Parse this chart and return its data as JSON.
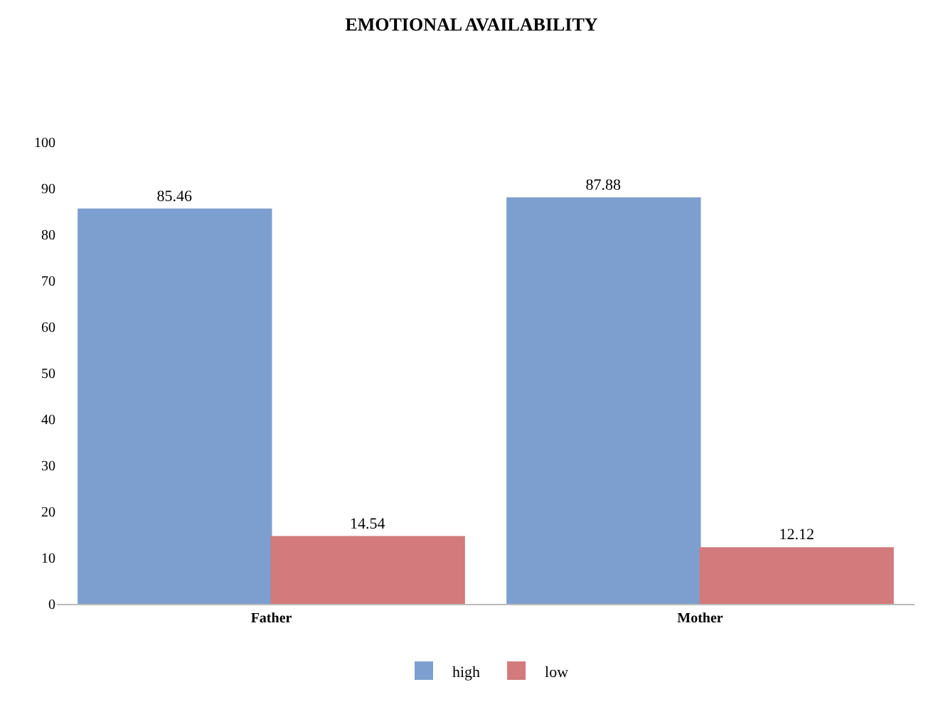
{
  "chart_data": {
    "type": "bar",
    "title": "EMOTIONAL AVAILABILITY",
    "categories": [
      "Father",
      "Mother"
    ],
    "series": [
      {
        "name": "high",
        "color": "#7d9fcf",
        "values": [
          85.46,
          87.88
        ]
      },
      {
        "name": "low",
        "color": "#d27a7c",
        "values": [
          14.54,
          12.12
        ]
      }
    ],
    "ylim": [
      0,
      100
    ],
    "yticks": [
      0,
      10,
      20,
      30,
      40,
      50,
      60,
      70,
      80,
      90,
      100
    ],
    "data_labels": true,
    "legend": "bottom"
  }
}
